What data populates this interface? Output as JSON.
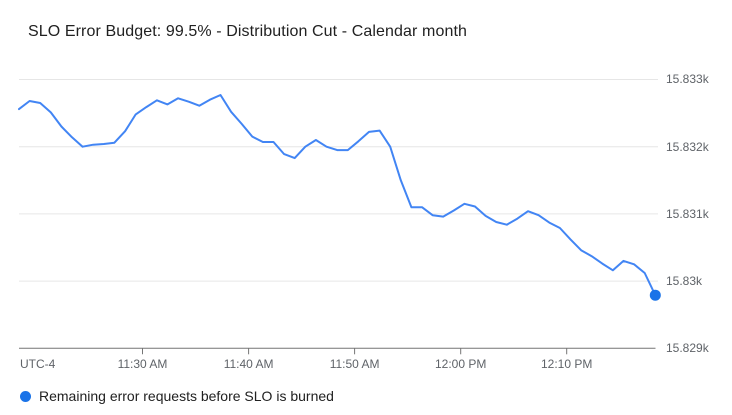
{
  "chart_data": {
    "type": "line",
    "title": "SLO Error Budget: 99.5% - Distribution Cut - Calendar month",
    "timezone_label": "UTC-4",
    "x_axis": {
      "tick_labels": [
        "11:30 AM",
        "11:40 AM",
        "11:50 AM",
        "12:00 PM",
        "12:10 PM"
      ]
    },
    "y_axis": {
      "tick_labels": [
        "15.833k",
        "15.832k",
        "15.831k",
        "15.83k",
        "15.829k"
      ],
      "tick_values": [
        15833,
        15832,
        15831,
        15830,
        15829
      ],
      "min": 15829,
      "max": 15833
    },
    "grid": "horizontal-only",
    "legend_position": "bottom-left",
    "colors": {
      "line": "#4285f4",
      "end_dot": "#1a73e8",
      "legend_dot": "#1a73e8",
      "gridline": "#e6e6e6",
      "axis": "#757575",
      "tick_label": "#5f6368",
      "title": "#212121"
    },
    "series": [
      {
        "name": "Remaining error requests before SLO is burned",
        "color": "#4285f4",
        "end_dot_color": "#1a73e8",
        "start_time": "11:18 AM",
        "end_time": "12:18 PM",
        "interval_minutes": 1,
        "values": [
          15832.56,
          15832.68,
          15832.65,
          15832.51,
          15832.3,
          15832.14,
          15832.0,
          15832.03,
          15832.04,
          15832.06,
          15832.23,
          15832.48,
          15832.59,
          15832.69,
          15832.63,
          15832.72,
          15832.67,
          15832.61,
          15832.7,
          15832.77,
          15832.52,
          15832.34,
          15832.15,
          15832.07,
          15832.07,
          15831.89,
          15831.83,
          15832.0,
          15832.1,
          15832.0,
          15831.95,
          15831.95,
          15832.08,
          15832.22,
          15832.24,
          15832.0,
          15831.5,
          15831.1,
          15831.1,
          15830.98,
          15830.96,
          15831.05,
          15831.15,
          15831.11,
          15830.97,
          15830.88,
          15830.84,
          15830.93,
          15831.04,
          15830.98,
          15830.87,
          15830.79,
          15830.62,
          15830.46,
          15830.37,
          15830.26,
          15830.16,
          15830.3,
          15830.25,
          15830.12,
          15829.79
        ]
      }
    ]
  }
}
